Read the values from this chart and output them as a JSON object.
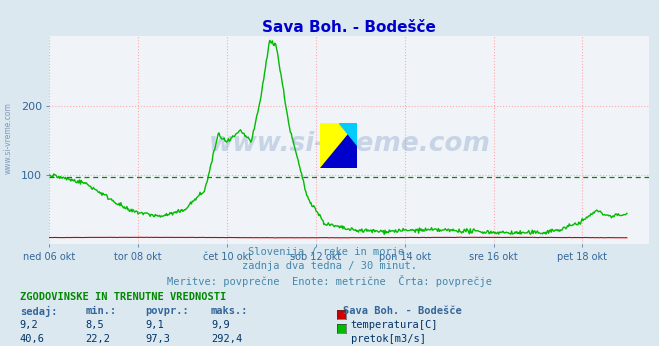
{
  "title": "Sava Boh. - Bodešče",
  "title_color": "#0000cc",
  "bg_color": "#dce8f0",
  "plot_bg_color": "#f0f4f8",
  "grid_color": "#ffaaaa",
  "xlabel_color": "#336699",
  "ylabel_color": "#336699",
  "tick_color": "#336699",
  "watermark": "www.si-vreme.com",
  "watermark_color": "#3366aa",
  "watermark_alpha": 0.22,
  "subtitle_lines": [
    "Slovenija / reke in morje.",
    "zadnja dva tedna / 30 minut.",
    "Meritve: povprečne  Enote: metrične  Črta: povprečje"
  ],
  "subtitle_color": "#4488aa",
  "xlabels": [
    "ned 06 okt",
    "tor 08 okt",
    "čet 10 okt",
    "sob 12 okt",
    "pon 14 okt",
    "sre 16 okt",
    "pet 18 okt"
  ],
  "xlabels_x": [
    0,
    2,
    4,
    6,
    8,
    10,
    12
  ],
  "xmax": 13.5,
  "ylim": [
    0,
    300
  ],
  "yticks": [
    100,
    200
  ],
  "axis_color": "#0000cc",
  "temp_line_color": "#cc0000",
  "flow_line_color": "#00bb00",
  "dashed_line_y": 97.3,
  "dashed_line_color": "#008800",
  "table_header": "ZGODOVINSKE IN TRENUTNE VREDNOSTI",
  "table_header_color": "#008800",
  "col_headers": [
    "sedaj:",
    "min.:",
    "povpr.:",
    "maks.:"
  ],
  "col_header_color": "#336699",
  "station_header": "Sava Boh. - Bodešče",
  "station_header_color": "#336699",
  "rows": [
    {
      "values": [
        "9,2",
        "8,5",
        "9,1",
        "9,9"
      ],
      "label": "temperatura[C]",
      "color": "#cc0000"
    },
    {
      "values": [
        "40,6",
        "22,2",
        "97,3",
        "292,4"
      ],
      "label": "pretok[m3/s]",
      "color": "#00bb00"
    }
  ],
  "n_points": 672
}
